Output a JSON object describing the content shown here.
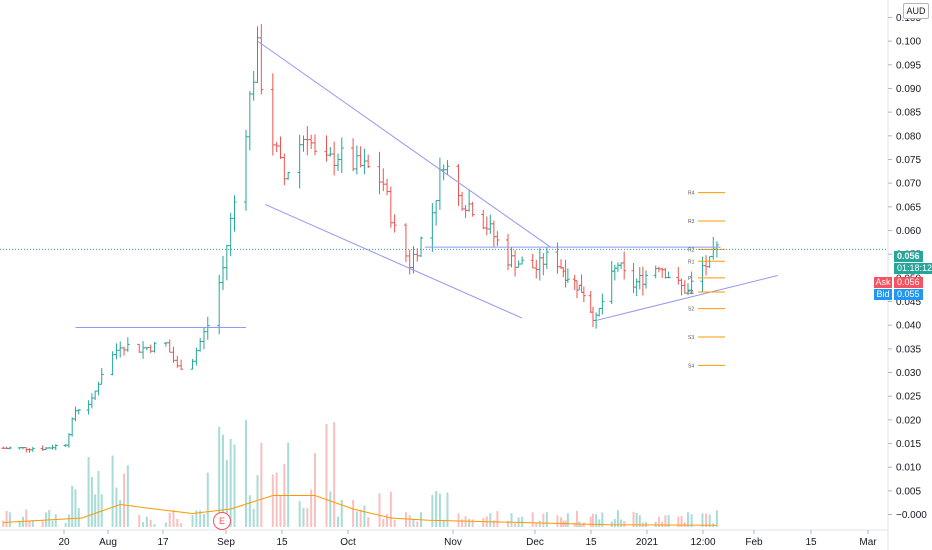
{
  "currency": "AUD",
  "price_tags": {
    "last": "0.056",
    "countdown": "01:18:12",
    "ask_label": "Ask",
    "ask_value": "0.056",
    "bid_label": "Bid",
    "bid_value": "0.055"
  },
  "earnings_badge": "E",
  "colors": {
    "up": "#26a69a",
    "down": "#ef5350",
    "vol_up": "#a8dcd6",
    "vol_down": "#f8c0bf",
    "ma": "#ff9800",
    "trendline": "#9598f0",
    "pivot": "#ff9800",
    "last_price": "#26a69a",
    "ask": "#f7525f",
    "bid": "#2196f3"
  },
  "chart_data": {
    "type": "ohlc",
    "y_axis": {
      "min": -0.002,
      "max": 0.107,
      "ticks": [
        "0.105",
        "0.100",
        "0.095",
        "0.090",
        "0.085",
        "0.080",
        "0.075",
        "0.070",
        "0.065",
        "0.060",
        "0.055",
        "0.050",
        "0.045",
        "0.040",
        "0.035",
        "0.030",
        "0.025",
        "0.020",
        "0.015",
        "0.010",
        "0.005",
        "−0.000"
      ]
    },
    "x_axis": {
      "labels": [
        "20",
        "Aug",
        "17",
        "Sep",
        "15",
        "Oct",
        "Nov",
        "Dec",
        "15",
        "2021",
        "12:00",
        "Feb",
        "15",
        "Mar"
      ]
    },
    "price_path": [
      [
        "2020-07-01",
        0.014
      ],
      [
        "2020-07-14",
        0.014
      ],
      [
        "2020-07-20",
        0.015
      ],
      [
        "2020-07-23",
        0.022
      ],
      [
        "2020-07-28",
        0.024
      ],
      [
        "2020-07-31",
        0.03
      ],
      [
        "2020-08-05",
        0.036
      ],
      [
        "2020-08-10",
        0.035
      ],
      [
        "2020-08-17",
        0.036
      ],
      [
        "2020-08-20",
        0.031
      ],
      [
        "2020-08-24",
        0.033
      ],
      [
        "2020-08-28",
        0.04
      ],
      [
        "2020-09-01",
        0.052
      ],
      [
        "2020-09-03",
        0.062
      ],
      [
        "2020-09-05",
        0.07
      ],
      [
        "2020-09-08",
        0.088
      ],
      [
        "2020-09-10",
        0.098
      ],
      [
        "2020-09-12",
        0.085
      ],
      [
        "2020-09-14",
        0.079
      ],
      [
        "2020-09-17",
        0.071
      ],
      [
        "2020-09-20",
        0.077
      ],
      [
        "2020-09-23",
        0.081
      ],
      [
        "2020-09-26",
        0.073
      ],
      [
        "2020-10-01",
        0.076
      ],
      [
        "2020-10-05",
        0.074
      ],
      [
        "2020-10-09",
        0.073
      ],
      [
        "2020-10-13",
        0.07
      ],
      [
        "2020-10-16",
        0.06
      ],
      [
        "2020-10-20",
        0.053
      ],
      [
        "2020-10-23",
        0.058
      ],
      [
        "2020-10-26",
        0.064
      ],
      [
        "2020-10-29",
        0.075
      ],
      [
        "2020-11-02",
        0.067
      ],
      [
        "2020-11-06",
        0.065
      ],
      [
        "2020-11-11",
        0.06
      ],
      [
        "2020-11-16",
        0.054
      ],
      [
        "2020-11-20",
        0.053
      ],
      [
        "2020-11-24",
        0.052
      ],
      [
        "2020-11-28",
        0.055
      ],
      [
        "2020-12-03",
        0.051
      ],
      [
        "2020-12-07",
        0.049
      ],
      [
        "2020-12-11",
        0.047
      ],
      [
        "2020-12-16",
        0.041
      ],
      [
        "2020-12-19",
        0.047
      ],
      [
        "2020-12-23",
        0.053
      ],
      [
        "2020-12-27",
        0.048
      ],
      [
        "2020-12-31",
        0.05
      ],
      [
        "2021-01-05",
        0.053
      ],
      [
        "2021-01-10",
        0.049
      ],
      [
        "2021-01-14",
        0.047
      ],
      [
        "2021-01-17",
        0.052
      ],
      [
        "2021-01-20",
        0.053
      ],
      [
        "2021-01-22",
        0.056
      ]
    ],
    "volume_max": 0.03,
    "moving_average_volume": [
      [
        "2020-07-01",
        0.001
      ],
      [
        "2020-07-25",
        0.002
      ],
      [
        "2020-08-05",
        0.005
      ],
      [
        "2020-08-14",
        0.004
      ],
      [
        "2020-08-24",
        0.003
      ],
      [
        "2020-09-03",
        0.004
      ],
      [
        "2020-09-14",
        0.007
      ],
      [
        "2020-09-25",
        0.007
      ],
      [
        "2020-10-05",
        0.004
      ],
      [
        "2020-10-15",
        0.002
      ],
      [
        "2020-10-25",
        0.0015
      ],
      [
        "2020-11-20",
        0.001
      ],
      [
        "2020-12-20",
        0.0005
      ],
      [
        "2021-01-22",
        0.0004
      ]
    ],
    "trendlines": [
      {
        "name": "wedge-upper",
        "from": [
          "2020-09-10",
          0.1
        ],
        "to": [
          "2020-11-28",
          0.0565
        ]
      },
      {
        "name": "wedge-lower",
        "from": [
          "2020-09-12",
          0.0655
        ],
        "to": [
          "2020-11-20",
          0.0415
        ]
      },
      {
        "name": "resistance-aug",
        "from": [
          "2020-07-23",
          0.0395
        ],
        "to": [
          "2020-09-07",
          0.0395
        ]
      },
      {
        "name": "resistance-dec",
        "from": [
          "2020-10-24",
          0.0565
        ],
        "to": [
          "2021-01-23",
          0.0565
        ]
      },
      {
        "name": "support-rising",
        "from": [
          "2020-12-16",
          0.041
        ],
        "to": [
          "2021-02-07",
          0.0505
        ]
      }
    ],
    "last_price": 0.056,
    "pivots": [
      {
        "label": "R4",
        "value": 0.068
      },
      {
        "label": "R3",
        "value": 0.062
      },
      {
        "label": "R2",
        "value": 0.056
      },
      {
        "label": "R1",
        "value": 0.0535
      },
      {
        "label": "P",
        "value": 0.05
      },
      {
        "label": "S1",
        "value": 0.047
      },
      {
        "label": "S2",
        "value": 0.0435
      },
      {
        "label": "S3",
        "value": 0.0375
      },
      {
        "label": "S4",
        "value": 0.0315
      }
    ]
  }
}
